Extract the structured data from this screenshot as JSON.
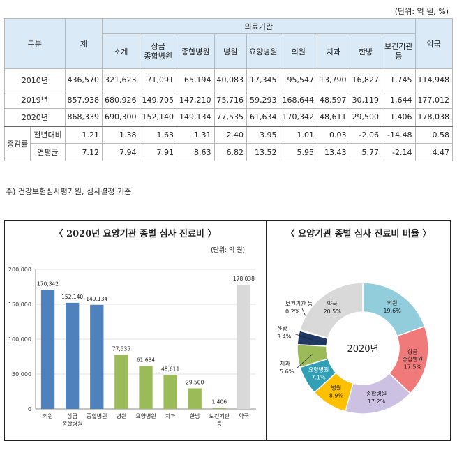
{
  "unit_note": "(단위: 억 원, %)",
  "table": {
    "header": {
      "category": "구분",
      "total": "계",
      "medical": "의료기관",
      "pharmacy": "약국",
      "sub": [
        "소계",
        "상급\n종합병원",
        "종합병원",
        "병원",
        "요양병원",
        "의원",
        "치과",
        "한방",
        "보건기관\n등"
      ]
    },
    "years": [
      {
        "label": "2010년",
        "values": [
          "436,570",
          "321,623",
          "71,091",
          "65,194",
          "40,083",
          "17,345",
          "95,547",
          "13,790",
          "16,827",
          "1,745",
          "114,948"
        ]
      },
      {
        "label": "2019년",
        "values": [
          "857,938",
          "680,926",
          "149,705",
          "147,210",
          "75,716",
          "59,293",
          "168,644",
          "48,597",
          "30,119",
          "1,644",
          "177,012"
        ]
      },
      {
        "label": "2020년",
        "values": [
          "868,339",
          "690,300",
          "152,140",
          "149,134",
          "77,535",
          "61,634",
          "170,342",
          "48,611",
          "29,500",
          "1,406",
          "178,038"
        ]
      }
    ],
    "growth_label": "증감률",
    "growth": [
      {
        "label": "전년대비",
        "values": [
          "1.21",
          "1.38",
          "1.63",
          "1.31",
          "2.40",
          "3.95",
          "1.01",
          "0.03",
          "-2.06",
          "-14.48",
          "0.58"
        ]
      },
      {
        "label": "연평균",
        "values": [
          "7.12",
          "7.94",
          "7.91",
          "8.63",
          "6.82",
          "13.52",
          "5.95",
          "13.43",
          "5.77",
          "-2.14",
          "4.47"
        ]
      }
    ]
  },
  "note": "주) 건강보험심사평가원, 심사결정 기준",
  "bar_panel": {
    "title": "〈 2020년 요양기관 종별 심사 진료비 〉",
    "unit": "(단위: 억 원)"
  },
  "pie_panel": {
    "title": "〈 요양기관 종별 심사 진료비 비율 〉",
    "center_label": "2020년"
  },
  "chart_data": [
    {
      "type": "bar",
      "title": "〈 2020년 요양기관 종별 심사 진료비 〉",
      "categories": [
        "의원",
        "상급\n종합병원",
        "종합병원",
        "병원",
        "요양병원",
        "치과",
        "한방",
        "보건기관\n등",
        "약국"
      ],
      "values": [
        170342,
        152140,
        149134,
        77535,
        61634,
        48611,
        29500,
        1406,
        178038
      ],
      "value_labels": [
        "170,342",
        "152,140",
        "149,134",
        "77,535",
        "61,634",
        "48,611",
        "29,500",
        "1,406",
        "178,038"
      ],
      "colors": [
        "#4f81bd",
        "#4f81bd",
        "#4f81bd",
        "#9bbb59",
        "#9bbb59",
        "#9bbb59",
        "#9bbb59",
        "#9bbb59",
        "#d9d9d9"
      ],
      "yticks": [
        "0",
        "50,000",
        "100,000",
        "150,000",
        "200,000"
      ],
      "ylim": [
        0,
        200000
      ],
      "grid": true
    },
    {
      "type": "pie",
      "title": "〈 요양기관 종별 심사 진료비 비율 〉",
      "labels": [
        "의원",
        "상급\n종합병원",
        "종합병원",
        "병원",
        "요양병원",
        "치과",
        "한방",
        "보건기관 등",
        "약국"
      ],
      "values": [
        19.6,
        17.5,
        17.2,
        8.9,
        7.1,
        5.6,
        3.4,
        0.2,
        20.5
      ],
      "value_labels": [
        "19.6%",
        "17.5%",
        "17.2%",
        "8.9%",
        "7.1%",
        "5.6%",
        "3.4%",
        "0.2%",
        "20.5%"
      ],
      "colors": [
        "#92cddc",
        "#f07a7a",
        "#ccc0e3",
        "#ffc000",
        "#31a0b4",
        "#9bbb59",
        "#1f3864",
        "#7f7f7f",
        "#d9d9d9"
      ],
      "center_label": "2020년"
    }
  ]
}
